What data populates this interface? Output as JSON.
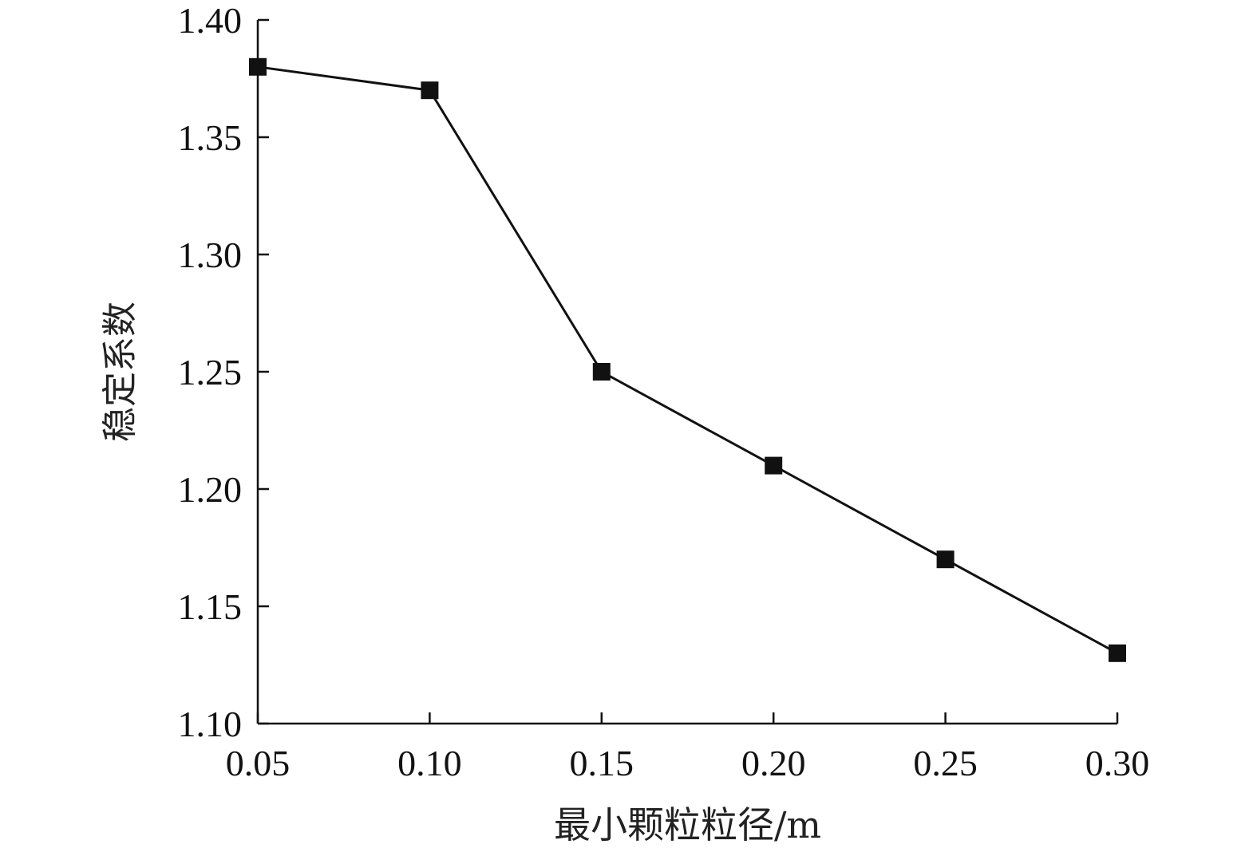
{
  "chart_data": {
    "type": "line",
    "title": "",
    "xlabel": "最小颗粒粒径/m",
    "ylabel": "稳定系数",
    "xlim": [
      0.05,
      0.3
    ],
    "ylim": [
      1.1,
      1.4
    ],
    "x_ticks": [
      "0.05",
      "0.10",
      "0.15",
      "0.20",
      "0.25",
      "0.30"
    ],
    "y_ticks": [
      "1.10",
      "1.15",
      "1.20",
      "1.25",
      "1.30",
      "1.35",
      "1.40"
    ],
    "grid": false,
    "series": [
      {
        "marker": "square",
        "color": "#111111",
        "x": [
          0.05,
          0.1,
          0.15,
          0.2,
          0.25,
          0.3
        ],
        "y": [
          1.38,
          1.37,
          1.25,
          1.21,
          1.17,
          1.13
        ]
      }
    ]
  }
}
